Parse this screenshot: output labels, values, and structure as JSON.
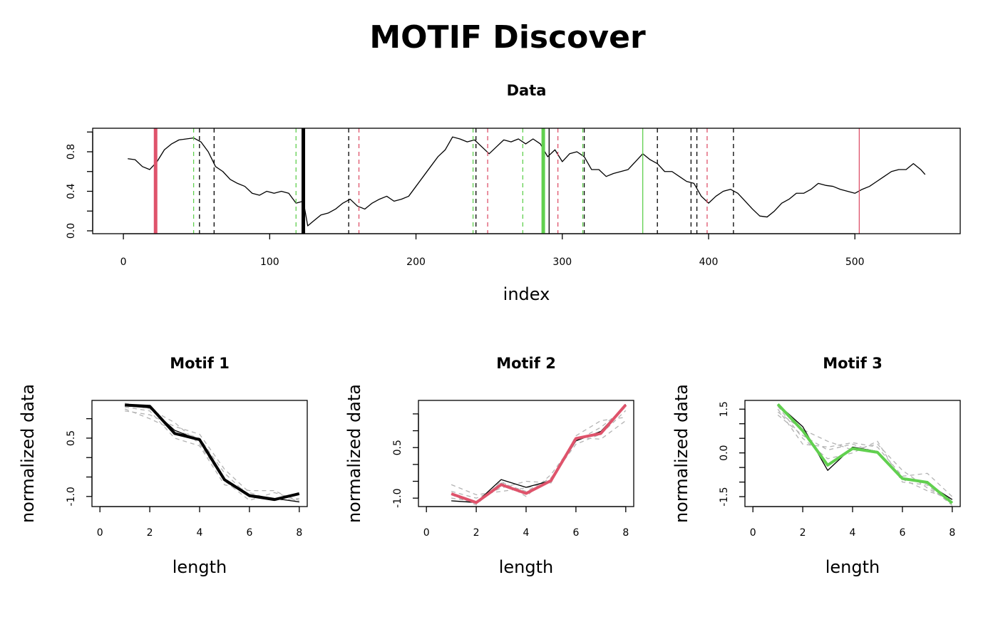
{
  "title": "MOTIF Discover",
  "chart_data": [
    {
      "type": "line",
      "title": "Data",
      "xlabel": "index",
      "xlim": [
        -21,
        572
      ],
      "ylim": [
        -0.029,
        1.038
      ],
      "xticks": [
        0,
        100,
        200,
        300,
        400,
        500
      ],
      "yticks": [
        {
          "value": 0,
          "label": "0.0"
        },
        {
          "value": 0.2,
          "label": null
        },
        0.4,
        {
          "value": 0.6,
          "label": null
        },
        0.8,
        {
          "value": 1.0,
          "label": null
        }
      ],
      "x": [
        3,
        8,
        13,
        18,
        23,
        28,
        33,
        38,
        43,
        48,
        53,
        58,
        63,
        68,
        73,
        78,
        83,
        88,
        93,
        98,
        103,
        108,
        113,
        118,
        123,
        126,
        130,
        135,
        140,
        145,
        150,
        155,
        160,
        165,
        170,
        175,
        180,
        185,
        190,
        195,
        200,
        205,
        210,
        215,
        220,
        225,
        230,
        235,
        240,
        245,
        250,
        255,
        260,
        265,
        270,
        275,
        280,
        285,
        290,
        295,
        300,
        305,
        310,
        315,
        320,
        325,
        330,
        335,
        340,
        345,
        350,
        355,
        360,
        365,
        370,
        375,
        380,
        385,
        390,
        395,
        400,
        405,
        410,
        415,
        420,
        425,
        430,
        435,
        440,
        445,
        450,
        455,
        460,
        465,
        470,
        475,
        480,
        485,
        490,
        495,
        500,
        505,
        510,
        515,
        520,
        525,
        530,
        535,
        540,
        545,
        548
      ],
      "series": [
        {
          "color": "#000000",
          "lty": "solid",
          "lwd": 1.3,
          "values": [
            0.73,
            0.72,
            0.65,
            0.62,
            0.7,
            0.82,
            0.88,
            0.92,
            0.93,
            0.94,
            0.9,
            0.8,
            0.65,
            0.6,
            0.52,
            0.48,
            0.45,
            0.38,
            0.36,
            0.4,
            0.38,
            0.4,
            0.38,
            0.28,
            0.3,
            0.05,
            0.1,
            0.16,
            0.18,
            0.22,
            0.28,
            0.32,
            0.25,
            0.22,
            0.28,
            0.32,
            0.35,
            0.3,
            0.32,
            0.35,
            0.45,
            0.55,
            0.65,
            0.75,
            0.82,
            0.95,
            0.93,
            0.9,
            0.92,
            0.85,
            0.78,
            0.85,
            0.92,
            0.9,
            0.93,
            0.88,
            0.93,
            0.88,
            0.75,
            0.82,
            0.7,
            0.78,
            0.8,
            0.75,
            0.62,
            0.62,
            0.55,
            0.58,
            0.6,
            0.62,
            0.7,
            0.78,
            0.72,
            0.68,
            0.6,
            0.6,
            0.55,
            0.5,
            0.48,
            0.35,
            0.28,
            0.35,
            0.4,
            0.42,
            0.38,
            0.3,
            0.22,
            0.15,
            0.14,
            0.2,
            0.28,
            0.32,
            0.38,
            0.38,
            0.42,
            0.48,
            0.46,
            0.45,
            0.42,
            0.4,
            0.38,
            0.42,
            0.45,
            0.5,
            0.55,
            0.6,
            0.62,
            0.62,
            0.68,
            0.62,
            0.57
          ]
        }
      ],
      "vlines": [
        {
          "x": 22,
          "color": "#DF536B",
          "lty": "solid",
          "lwd": 5
        },
        {
          "x": 48,
          "color": "#61D04F",
          "lty": "dashed",
          "lwd": 1.3
        },
        {
          "x": 52,
          "color": "#000000",
          "lty": "dashed",
          "lwd": 1.3
        },
        {
          "x": 62,
          "color": "#000000",
          "lty": "dashed",
          "lwd": 1.3
        },
        {
          "x": 118,
          "color": "#61D04F",
          "lty": "dashed",
          "lwd": 1.3
        },
        {
          "x": 123,
          "color": "#000000",
          "lty": "solid",
          "lwd": 5
        },
        {
          "x": 154,
          "color": "#000000",
          "lty": "dashed",
          "lwd": 1.3
        },
        {
          "x": 161,
          "color": "#DF536B",
          "lty": "dashed",
          "lwd": 1.3
        },
        {
          "x": 239,
          "color": "#61D04F",
          "lty": "dashed",
          "lwd": 1.3
        },
        {
          "x": 241,
          "color": "#000000",
          "lty": "dashed",
          "lwd": 1.3
        },
        {
          "x": 249,
          "color": "#DF536B",
          "lty": "dashed",
          "lwd": 1.3
        },
        {
          "x": 273,
          "color": "#61D04F",
          "lty": "dashed",
          "lwd": 1.3
        },
        {
          "x": 287,
          "color": "#61D04F",
          "lty": "solid",
          "lwd": 5
        },
        {
          "x": 291,
          "color": "#000000",
          "lty": "solid",
          "lwd": 1.3
        },
        {
          "x": 297,
          "color": "#DF536B",
          "lty": "dashed",
          "lwd": 1.3
        },
        {
          "x": 314,
          "color": "#61D04F",
          "lty": "dashed",
          "lwd": 1.3
        },
        {
          "x": 315,
          "color": "#000000",
          "lty": "dashed",
          "lwd": 1.3
        },
        {
          "x": 355,
          "color": "#61D04F",
          "lty": "solid",
          "lwd": 1.3
        },
        {
          "x": 365,
          "color": "#000000",
          "lty": "dashed",
          "lwd": 1.3
        },
        {
          "x": 388,
          "color": "#000000",
          "lty": "dashed",
          "lwd": 1.3
        },
        {
          "x": 392,
          "color": "#000000",
          "lty": "dashed",
          "lwd": 1.3
        },
        {
          "x": 399,
          "color": "#DF536B",
          "lty": "dashed",
          "lwd": 1.3
        },
        {
          "x": 417,
          "color": "#000000",
          "lty": "dashed",
          "lwd": 1.3
        },
        {
          "x": 503,
          "color": "#DF536B",
          "lty": "solid",
          "lwd": 1.3
        }
      ]
    },
    {
      "type": "line",
      "title": "Motif 1",
      "xlabel": "length",
      "ylabel": "normalized data",
      "xlim": [
        -0.32,
        8.32
      ],
      "ylim": [
        -1.26,
        1.47
      ],
      "xticks": [
        0,
        2,
        4,
        6,
        8
      ],
      "yticks": [
        {
          "value": -1.0,
          "label": "-1.0"
        },
        {
          "value": -0.5,
          "label": null
        },
        {
          "value": 0,
          "label": null
        },
        0.5,
        {
          "value": 1.0,
          "label": null
        }
      ],
      "x": [
        1,
        2,
        3,
        4,
        5,
        6,
        7,
        8
      ],
      "series": [
        {
          "color": "#B3B3B3",
          "lty": "dashed",
          "lwd": 1.3,
          "values": [
            1.2,
            1.1,
            0.8,
            0.6,
            -0.3,
            -0.9,
            -1.1,
            -1.05
          ]
        },
        {
          "color": "#B3B3B3",
          "lty": "dashed",
          "lwd": 1.3,
          "values": [
            1.4,
            1.25,
            0.9,
            0.35,
            -0.6,
            -1.1,
            -0.9,
            -1.1
          ]
        },
        {
          "color": "#B3B3B3",
          "lty": "dashed",
          "lwd": 1.3,
          "values": [
            1.25,
            1.0,
            0.7,
            0.5,
            -0.4,
            -1.0,
            -1.1,
            -0.9
          ]
        },
        {
          "color": "#B3B3B3",
          "lty": "dashed",
          "lwd": 1.3,
          "values": [
            1.3,
            1.2,
            0.5,
            0.3,
            -0.7,
            -0.85,
            -0.85,
            -1.15
          ]
        },
        {
          "color": "#000000",
          "lty": "solid",
          "lwd": 1.3,
          "values": [
            1.33,
            1.28,
            0.7,
            0.45,
            -0.55,
            -0.95,
            -1.05,
            -1.14
          ]
        },
        {
          "color": "#000000",
          "lty": "solid",
          "lwd": 4,
          "values": [
            1.35,
            1.32,
            0.62,
            0.46,
            -0.57,
            -0.98,
            -1.08,
            -0.93
          ]
        }
      ]
    },
    {
      "type": "line",
      "title": "Motif 2",
      "xlabel": "length",
      "ylabel": "normalized data",
      "xlim": [
        -0.32,
        8.32
      ],
      "ylim": [
        -1.25,
        1.9
      ],
      "xticks": [
        0,
        2,
        4,
        6,
        8
      ],
      "yticks": [
        {
          "value": -1.0,
          "label": "-1.0"
        },
        {
          "value": -0.5,
          "label": null
        },
        {
          "value": 0,
          "label": null
        },
        0.5,
        {
          "value": 1.0,
          "label": null
        },
        {
          "value": 1.5,
          "label": null
        }
      ],
      "x": [
        1,
        2,
        3,
        4,
        5,
        6,
        7,
        8
      ],
      "series": [
        {
          "color": "#B3B3B3",
          "lty": "dashed",
          "lwd": 1.3,
          "values": [
            -0.6,
            -0.9,
            -0.8,
            -0.7,
            -0.5,
            0.8,
            0.75,
            1.3
          ]
        },
        {
          "color": "#B3B3B3",
          "lty": "dashed",
          "lwd": 1.3,
          "values": [
            -0.9,
            -1.2,
            -0.5,
            -0.95,
            -0.3,
            0.7,
            1.1,
            1.7
          ]
        },
        {
          "color": "#B3B3B3",
          "lty": "dashed",
          "lwd": 1.3,
          "values": [
            -0.8,
            -1.0,
            -0.7,
            -0.5,
            -0.55,
            0.85,
            1.3,
            1.4
          ]
        },
        {
          "color": "#B3B3B3",
          "lty": "dashed",
          "lwd": 1.3,
          "values": [
            -1.0,
            -1.1,
            -0.55,
            -0.8,
            -0.4,
            0.6,
            0.9,
            1.6
          ]
        },
        {
          "color": "#000000",
          "lty": "solid",
          "lwd": 1.3,
          "values": [
            -1.08,
            -1.13,
            -0.45,
            -0.68,
            -0.48,
            0.7,
            0.98,
            1.78
          ]
        },
        {
          "color": "#DF536B",
          "lty": "solid",
          "lwd": 4,
          "values": [
            -0.87,
            -1.13,
            -0.6,
            -0.86,
            -0.48,
            0.77,
            0.92,
            1.77
          ]
        }
      ]
    },
    {
      "type": "line",
      "title": "Motif 3",
      "xlabel": "length",
      "ylabel": "normalized data",
      "xlim": [
        -0.32,
        8.32
      ],
      "ylim": [
        -1.84,
        1.8
      ],
      "xticks": [
        0,
        2,
        4,
        6,
        8
      ],
      "yticks": [
        {
          "value": -1.5,
          "label": "-1.5"
        },
        {
          "value": -1.0,
          "label": null
        },
        {
          "value": -0.5,
          "label": null
        },
        {
          "value": 0,
          "label": "0.0"
        },
        {
          "value": 0.5,
          "label": null
        },
        {
          "value": 1.0,
          "label": null
        },
        1.5
      ],
      "x": [
        1,
        2,
        3,
        4,
        5,
        6,
        7,
        8
      ],
      "series": [
        {
          "color": "#B3B3B3",
          "lty": "dashed",
          "lwd": 1.3,
          "values": [
            1.4,
            0.8,
            0.4,
            0.1,
            0.3,
            -0.6,
            -1.2,
            -1.7
          ]
        },
        {
          "color": "#B3B3B3",
          "lty": "dashed",
          "lwd": 1.3,
          "values": [
            1.5,
            0.3,
            0.2,
            0.35,
            0.2,
            -0.8,
            -0.7,
            -1.5
          ]
        },
        {
          "color": "#B3B3B3",
          "lty": "dashed",
          "lwd": 1.3,
          "values": [
            1.3,
            0.6,
            0.1,
            0.3,
            0.0,
            -0.9,
            -1.3,
            -1.6
          ]
        },
        {
          "color": "#B3B3B3",
          "lty": "dashed",
          "lwd": 1.3,
          "values": [
            1.6,
            0.5,
            -0.2,
            0.0,
            0.4,
            -1.0,
            -1.1,
            -1.8
          ]
        },
        {
          "color": "#000000",
          "lty": "solid",
          "lwd": 1.3,
          "values": [
            1.67,
            0.9,
            -0.6,
            0.2,
            0.05,
            -0.85,
            -1.05,
            -1.6
          ]
        },
        {
          "color": "#61D04F",
          "lty": "solid",
          "lwd": 4,
          "values": [
            1.67,
            0.76,
            -0.42,
            0.15,
            0.02,
            -0.88,
            -1.01,
            -1.72
          ]
        }
      ]
    }
  ]
}
